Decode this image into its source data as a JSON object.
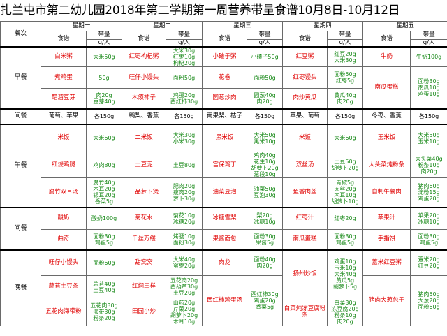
{
  "title": "扎兰屯市第二幼儿园2018年第二学期第一周营养带量食谱10月8日-10月12日",
  "header": {
    "meal_label": "餐次",
    "days": [
      "星期一",
      "星期二",
      "星期三",
      "星期四",
      "星期五"
    ],
    "recipe_label": "食谱",
    "amount_label": "带量",
    "unit_label": "g/人"
  },
  "meals": [
    {
      "name": "早餐",
      "rows": [
        [
          [
            "白米粥",
            "大米50g"
          ],
          [
            "红枣枸杞粥",
            "大米30g\n红枣10g\n枸杞20g"
          ],
          [
            "小碴子粥",
            "小碴子50g"
          ],
          [
            "红豆粥",
            "红豆20g\n大米30g"
          ],
          [
            "牛奶",
            "牛奶100g"
          ]
        ],
        [
          [
            "煮鸡蛋",
            "50g"
          ],
          [
            "旺仔小馒头",
            "面粉50g"
          ],
          [
            "花卷",
            "面粉50g"
          ],
          [
            "红枣馒头",
            "面粉50g\n红枣5g"
          ],
          [
            "南瓜蛋糕",
            "面粉30g\n南瓜10g\n鸡蛋10g"
          ]
        ],
        [
          [
            "醋溜豆芽",
            "肉20g\n豆芽40g"
          ],
          [
            "木须柿子",
            "鸡蛋20g\n西红柿30g"
          ],
          [
            "圆葱炒肉",
            "圆葱40g\n肉20g"
          ],
          [
            "肉炒黄瓜",
            "黄瓜40g\n肉20g"
          ],
          null
        ]
      ]
    },
    {
      "name": "间餐",
      "rows": [
        [
          [
            "葡萄、苹果",
            "各150g"
          ],
          [
            "鸭梨、香蕉",
            "各150g"
          ],
          [
            "南果梨、桔子",
            "各150g"
          ],
          [
            "苹果、葡萄",
            "各150g"
          ],
          [
            "冬枣、香蕉",
            "各150g"
          ]
        ]
      ]
    },
    {
      "name": "午餐",
      "rows": [
        [
          [
            "米饭",
            "大米60g"
          ],
          [
            "二米饭",
            "大米30g\n小米30g"
          ],
          [
            "黑米饭",
            "大米50g\n黑米10g"
          ],
          [
            "米饭",
            "大米60g"
          ],
          [
            "玉米饭",
            "大米50g\n玉米10g"
          ]
        ],
        [
          [
            "红烧鸡腿",
            "鸡肉80g"
          ],
          [
            "土豆泥",
            "土豆80g"
          ],
          [
            "宫保鸡丁",
            "鸡肉40g\n花生10g\n胡萝卜20g\n葱段10g"
          ],
          [
            "双丝汤",
            "土豆50g\n胡萝卜20g"
          ],
          [
            "大头菜炖粉条",
            "大头菜40g\n粉条10g\n肉20g"
          ]
        ],
        [
          [
            "腐竹双耳汤",
            "腐竹40g\n木耳20g\n银耳20g\n香菜5g"
          ],
          [
            "一品萝卜煲",
            "肥肉20g\n瘦肉20g\n萝卜30g"
          ],
          [
            "油菜豆泡",
            "油菜50g\n豆泡30g"
          ],
          [
            "鱼香肉丝",
            "青椒5g\n肉丝20g\n木耳10g\n胡萝卜10g"
          ],
          [
            "自制午餐肉",
            "猪肉60g\n淀粉15g\n鸡蛋20g"
          ]
        ]
      ]
    },
    {
      "name": "间餐",
      "rows": [
        [
          [
            "酸奶",
            "酸奶100g"
          ],
          [
            "菊花水",
            "菊花10g\n冰糖20g"
          ],
          [
            "冰糖雪梨",
            "梨20g\n冰糖10g"
          ],
          [
            "红枣汁",
            "红枣20g"
          ],
          [
            "苹果汁",
            "苹果20g\n冰糖10g"
          ]
        ],
        [
          [
            "曲奇",
            "面粉30g\n鸡蛋5g"
          ],
          [
            "千丝万缕",
            "烤肠10g\n面粉30g"
          ],
          [
            "果酱面包",
            "面粉30g\n果酱5g"
          ],
          [
            "南瓜蛋糕",
            "面粉30g\n鸡蛋5g"
          ],
          [
            "手指饼",
            "面粉30g\n鸡蛋5g"
          ]
        ]
      ]
    },
    {
      "name": "晚餐",
      "rows": [
        [
          [
            "旺仔小馒头",
            "面粉60g"
          ],
          [
            "甜窝窝",
            "大米40g\n蜜枣20g"
          ],
          [
            "肉龙",
            "面粉40g\n肉20g"
          ],
          [
            "扬州炒饭",
            "鸡蛋10g\n玉米10g\n大米40g\n黄瓜5g\n胡萝卜5g"
          ],
          [
            "薏米红豆粥",
            "薏米20g\n红豆20g"
          ]
        ],
        [
          [
            "蒜苔土豆条",
            "蒜苔40g\n土豆40g"
          ],
          [
            "红焖三样",
            "五花肉20g\n西葫芦30g\n土豆20g"
          ],
          [
            "西红柿鸡蛋汤",
            "西红柿30g\n鸡蛋20g\n香菜5g"
          ],
          null,
          [
            "猪肉大葱包子",
            "猪肉50g\n大葱20g\n面粉60g"
          ]
        ],
        [
          [
            "五花肉海带粉",
            "五花肉30g\n海带30g\n粉条20g"
          ],
          [
            "田园小炒",
            "山药20g\n芹菜20g\n胡萝卜20g\n木耳10g"
          ],
          null,
          [
            "白菜炖冻豆腐粉条",
            "白菜30g\n冻豆腐20g\n粉条10g\n肉20g"
          ],
          null
        ]
      ]
    }
  ]
}
